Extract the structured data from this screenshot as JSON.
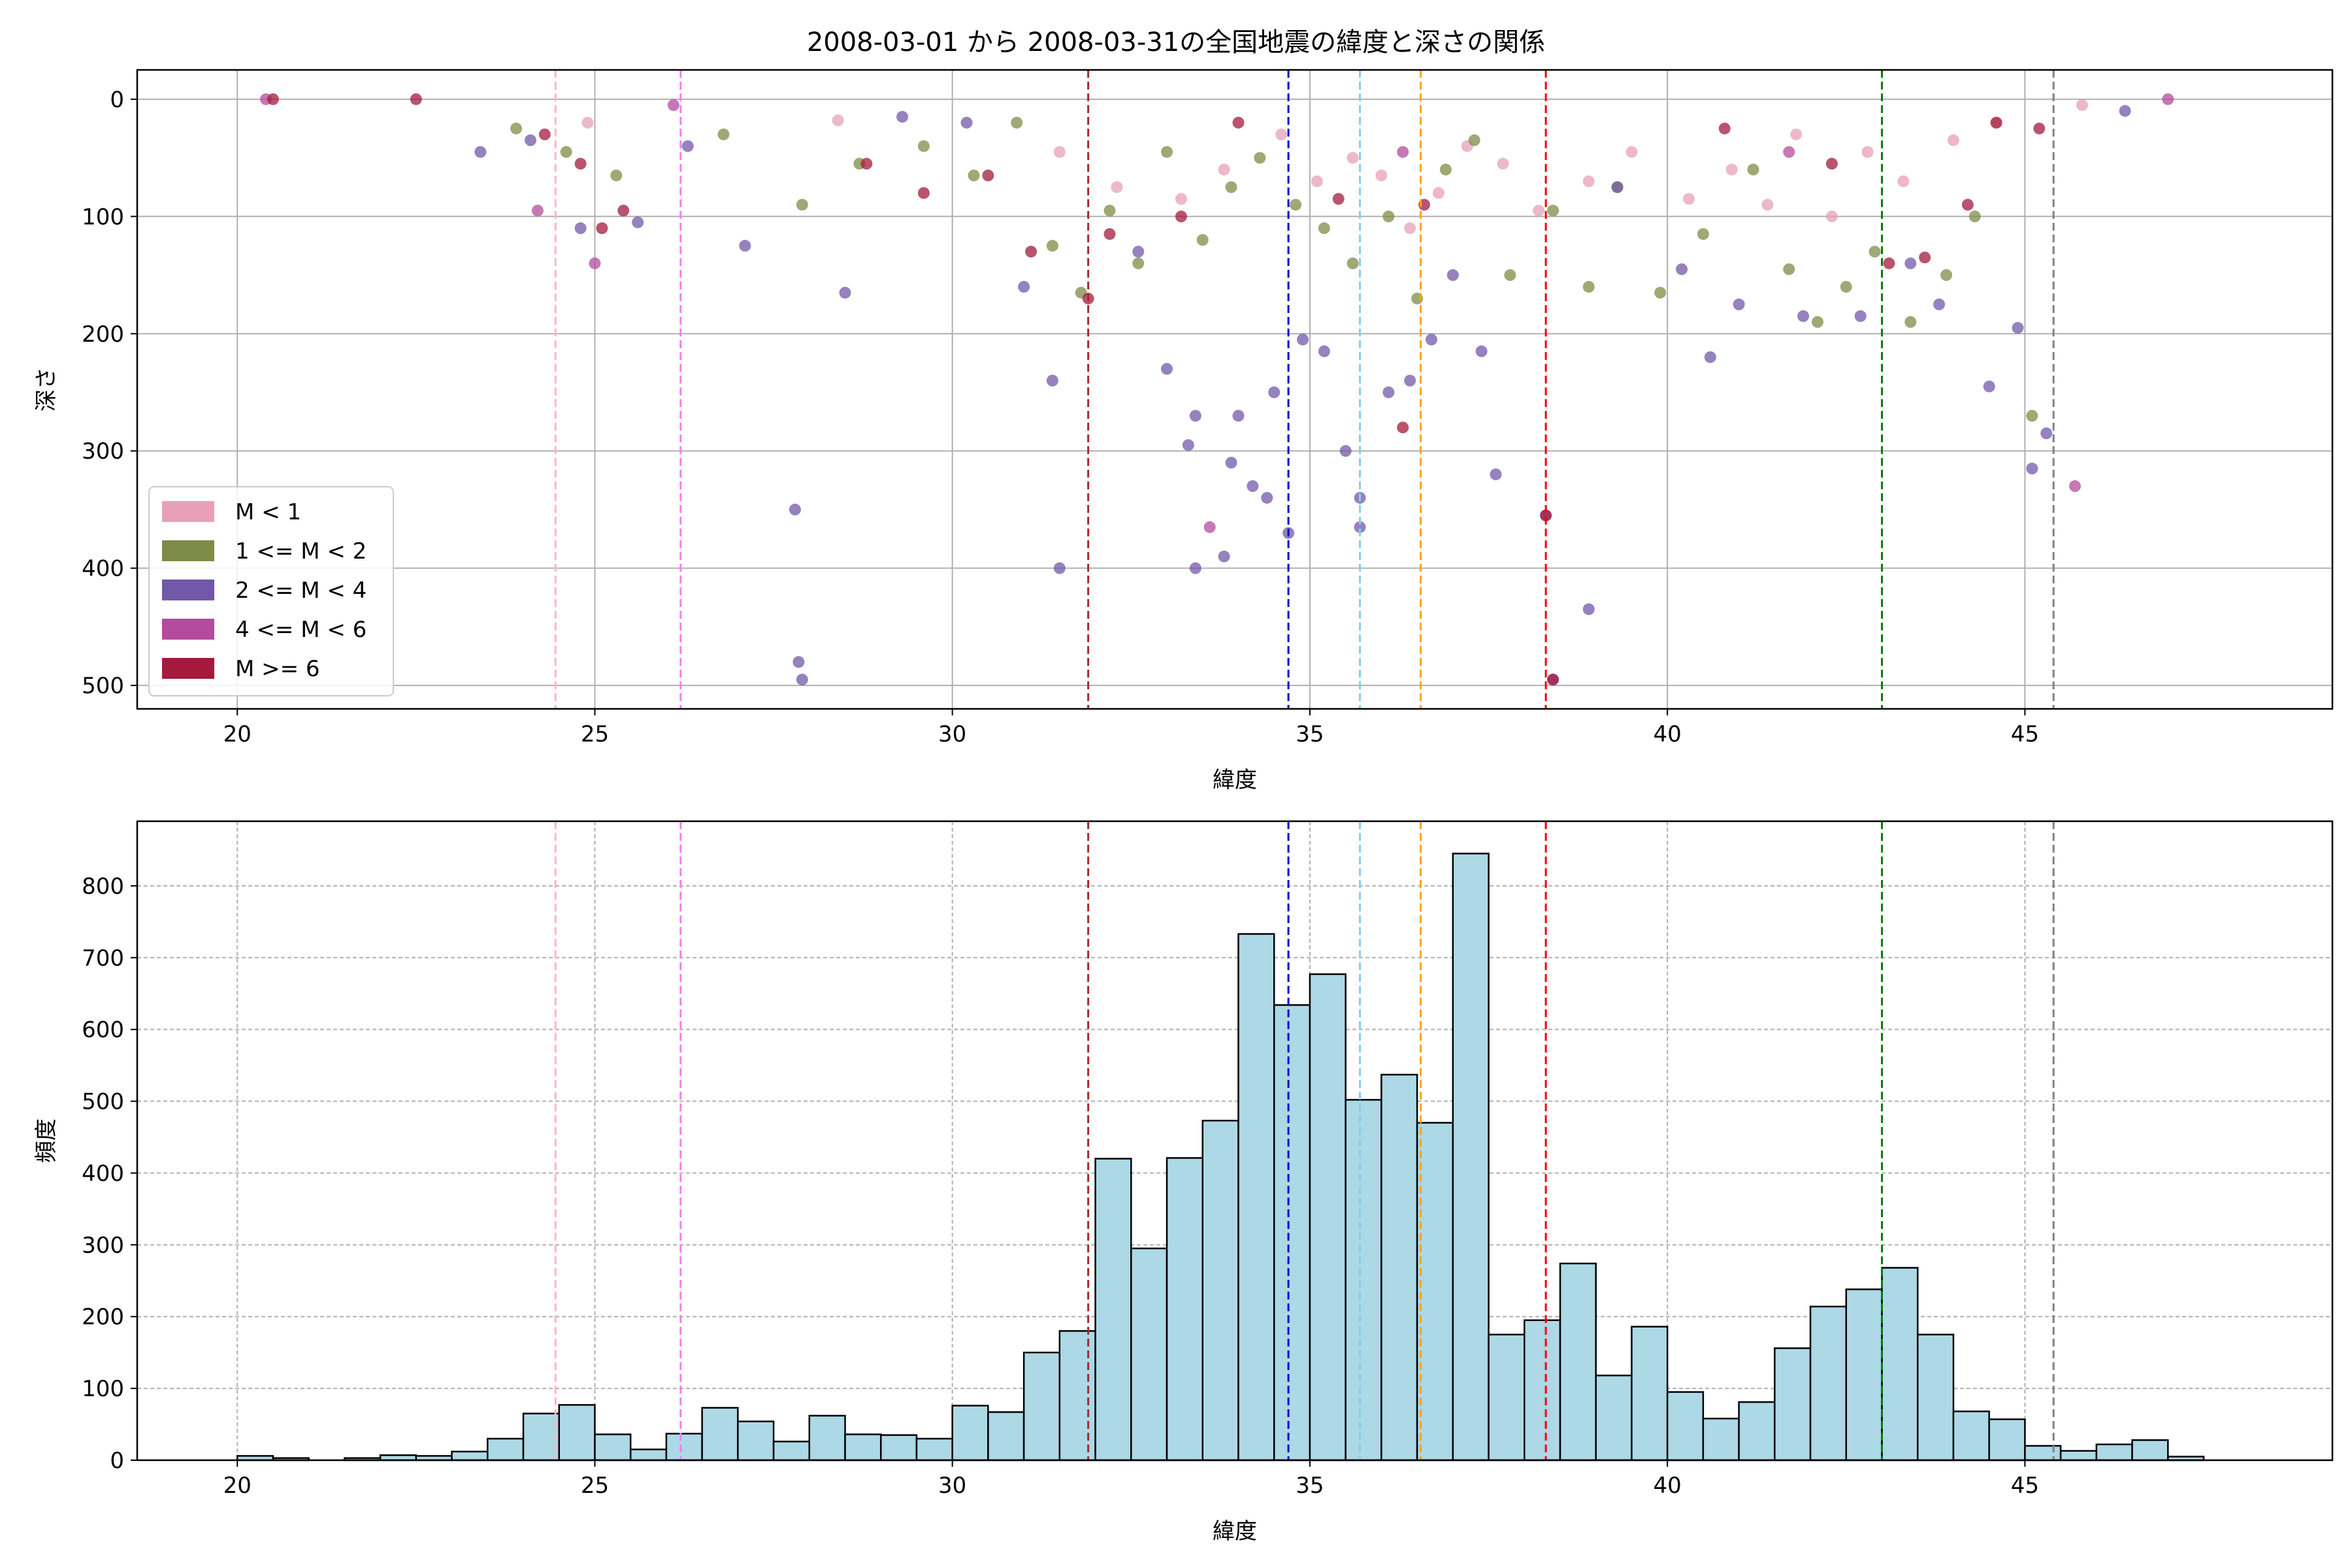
{
  "title": "2008-03-01 から 2008-03-31の全国地震の緯度と深さの関係",
  "chart_data": [
    {
      "type": "scatter",
      "xlabel": "緯度",
      "ylabel": "深さ",
      "xlim": [
        18.6,
        49.3
      ],
      "ylim": [
        520,
        -25
      ],
      "y_inverted": true,
      "xticks": [
        20,
        25,
        30,
        35,
        40,
        45
      ],
      "yticks": [
        0,
        100,
        200,
        300,
        400,
        500
      ],
      "grid": true,
      "legend_position": "lower-left",
      "series": [
        {
          "name": "M < 1",
          "color": "#e7a0b8",
          "points": [
            [
              24.9,
              20
            ],
            [
              28.4,
              18
            ],
            [
              31.5,
              45
            ],
            [
              32.3,
              75
            ],
            [
              33.2,
              85
            ],
            [
              33.8,
              60
            ],
            [
              34.6,
              30
            ],
            [
              35.1,
              70
            ],
            [
              35.6,
              50
            ],
            [
              36.0,
              65
            ],
            [
              36.4,
              110
            ],
            [
              36.8,
              80
            ],
            [
              37.2,
              40
            ],
            [
              37.7,
              55
            ],
            [
              38.2,
              95
            ],
            [
              38.9,
              70
            ],
            [
              39.5,
              45
            ],
            [
              40.3,
              85
            ],
            [
              40.9,
              60
            ],
            [
              41.4,
              90
            ],
            [
              41.8,
              30
            ],
            [
              42.3,
              100
            ],
            [
              42.8,
              45
            ],
            [
              43.3,
              70
            ],
            [
              44.0,
              35
            ],
            [
              44.6,
              20
            ],
            [
              45.8,
              5
            ]
          ]
        },
        {
          "name": "1 <= M < 2",
          "color": "#7d8c46",
          "points": [
            [
              23.9,
              25
            ],
            [
              24.6,
              45
            ],
            [
              25.3,
              65
            ],
            [
              26.8,
              30
            ],
            [
              27.9,
              90
            ],
            [
              28.7,
              55
            ],
            [
              29.6,
              40
            ],
            [
              30.3,
              65
            ],
            [
              30.9,
              20
            ],
            [
              31.4,
              125
            ],
            [
              31.8,
              165
            ],
            [
              32.2,
              95
            ],
            [
              32.6,
              140
            ],
            [
              33.0,
              45
            ],
            [
              33.5,
              120
            ],
            [
              33.9,
              75
            ],
            [
              34.3,
              50
            ],
            [
              34.8,
              90
            ],
            [
              35.2,
              110
            ],
            [
              35.6,
              140
            ],
            [
              36.1,
              100
            ],
            [
              36.5,
              170
            ],
            [
              36.9,
              60
            ],
            [
              37.3,
              35
            ],
            [
              37.8,
              150
            ],
            [
              38.4,
              95
            ],
            [
              38.9,
              160
            ],
            [
              39.3,
              75
            ],
            [
              39.9,
              165
            ],
            [
              40.5,
              115
            ],
            [
              41.2,
              60
            ],
            [
              41.7,
              145
            ],
            [
              42.1,
              190
            ],
            [
              42.5,
              160
            ],
            [
              42.9,
              130
            ],
            [
              43.4,
              190
            ],
            [
              43.9,
              150
            ],
            [
              44.3,
              100
            ],
            [
              45.1,
              270
            ]
          ]
        },
        {
          "name": "2 <= M < 4",
          "color": "#7158a8",
          "points": [
            [
              23.4,
              45
            ],
            [
              24.1,
              35
            ],
            [
              24.8,
              110
            ],
            [
              25.6,
              105
            ],
            [
              26.3,
              40
            ],
            [
              27.1,
              125
            ],
            [
              27.8,
              350
            ],
            [
              27.85,
              480
            ],
            [
              27.9,
              495
            ],
            [
              28.5,
              165
            ],
            [
              29.3,
              15
            ],
            [
              30.2,
              20
            ],
            [
              31.0,
              160
            ],
            [
              31.4,
              240
            ],
            [
              31.5,
              400
            ],
            [
              32.6,
              130
            ],
            [
              33.0,
              230
            ],
            [
              33.3,
              295
            ],
            [
              33.4,
              270
            ],
            [
              33.4,
              400
            ],
            [
              33.8,
              390
            ],
            [
              33.9,
              310
            ],
            [
              34.0,
              270
            ],
            [
              34.2,
              330
            ],
            [
              34.4,
              340
            ],
            [
              34.5,
              250
            ],
            [
              34.7,
              370
            ],
            [
              34.9,
              205
            ],
            [
              35.2,
              215
            ],
            [
              35.5,
              300
            ],
            [
              35.7,
              340
            ],
            [
              35.7,
              365
            ],
            [
              36.1,
              250
            ],
            [
              36.4,
              240
            ],
            [
              36.7,
              205
            ],
            [
              37.0,
              150
            ],
            [
              37.4,
              215
            ],
            [
              37.6,
              320
            ],
            [
              38.3,
              355
            ],
            [
              38.4,
              495
            ],
            [
              38.9,
              435
            ],
            [
              39.3,
              75
            ],
            [
              40.2,
              145
            ],
            [
              40.6,
              220
            ],
            [
              41.0,
              175
            ],
            [
              41.9,
              185
            ],
            [
              42.7,
              185
            ],
            [
              43.4,
              140
            ],
            [
              43.8,
              175
            ],
            [
              44.5,
              245
            ],
            [
              44.9,
              195
            ],
            [
              45.3,
              285
            ],
            [
              45.1,
              315
            ],
            [
              46.4,
              10
            ]
          ]
        },
        {
          "name": "4 <= M < 6",
          "color": "#b44b9c",
          "points": [
            [
              20.4,
              0
            ],
            [
              24.2,
              95
            ],
            [
              25.0,
              140
            ],
            [
              26.1,
              5
            ],
            [
              33.6,
              365
            ],
            [
              36.3,
              45
            ],
            [
              41.7,
              45
            ],
            [
              45.7,
              330
            ],
            [
              47.0,
              0
            ]
          ]
        },
        {
          "name": "M >= 6",
          "color": "#a31a3d",
          "points": [
            [
              20.5,
              0
            ],
            [
              22.5,
              0
            ],
            [
              24.3,
              30
            ],
            [
              24.8,
              55
            ],
            [
              25.1,
              110
            ],
            [
              25.4,
              95
            ],
            [
              28.8,
              55
            ],
            [
              29.6,
              80
            ],
            [
              30.5,
              65
            ],
            [
              31.1,
              130
            ],
            [
              31.9,
              170
            ],
            [
              32.2,
              115
            ],
            [
              33.2,
              100
            ],
            [
              34.0,
              20
            ],
            [
              35.4,
              85
            ],
            [
              36.3,
              280
            ],
            [
              36.6,
              90
            ],
            [
              38.3,
              355
            ],
            [
              38.4,
              495
            ],
            [
              40.8,
              25
            ],
            [
              42.3,
              55
            ],
            [
              43.1,
              140
            ],
            [
              43.6,
              135
            ],
            [
              44.2,
              90
            ],
            [
              44.6,
              20
            ],
            [
              45.2,
              25
            ]
          ]
        }
      ],
      "vlines": [
        {
          "x": 24.45,
          "color": "#ffb6c1"
        },
        {
          "x": 26.2,
          "color": "#ee82ee"
        },
        {
          "x": 31.9,
          "color": "#a52a2a"
        },
        {
          "x": 34.7,
          "color": "#0000cd"
        },
        {
          "x": 35.7,
          "color": "#87ceeb"
        },
        {
          "x": 36.55,
          "color": "#ffa500"
        },
        {
          "x": 38.3,
          "color": "#ff0000"
        },
        {
          "x": 43.0,
          "color": "#008000"
        },
        {
          "x": 45.4,
          "color": "#808080"
        }
      ]
    },
    {
      "type": "bar",
      "xlabel": "緯度",
      "ylabel": "頻度",
      "xlim": [
        18.6,
        49.3
      ],
      "ylim": [
        0,
        890
      ],
      "xticks": [
        20,
        25,
        30,
        35,
        40,
        45
      ],
      "yticks": [
        0,
        100,
        200,
        300,
        400,
        500,
        600,
        700,
        800
      ],
      "grid": true,
      "bar_color": "#add8e6",
      "bin_start": 20.0,
      "bin_width": 0.5,
      "values": [
        6,
        3,
        0,
        3,
        7,
        6,
        12,
        30,
        65,
        77,
        36,
        15,
        37,
        73,
        54,
        26,
        62,
        36,
        35,
        30,
        76,
        67,
        150,
        180,
        420,
        295,
        421,
        473,
        733,
        634,
        677,
        502,
        537,
        470,
        845,
        175,
        195,
        274,
        118,
        186,
        95,
        58,
        81,
        156,
        214,
        238,
        268,
        175,
        68,
        57,
        20,
        13,
        22,
        28,
        5,
        0
      ],
      "vlines": [
        {
          "x": 24.45,
          "color": "#ffb6c1"
        },
        {
          "x": 26.2,
          "color": "#ee82ee"
        },
        {
          "x": 31.9,
          "color": "#a52a2a"
        },
        {
          "x": 34.7,
          "color": "#0000cd"
        },
        {
          "x": 35.7,
          "color": "#87ceeb"
        },
        {
          "x": 36.55,
          "color": "#ffa500"
        },
        {
          "x": 38.3,
          "color": "#ff0000"
        },
        {
          "x": 43.0,
          "color": "#008000"
        },
        {
          "x": 45.4,
          "color": "#808080"
        }
      ]
    }
  ]
}
